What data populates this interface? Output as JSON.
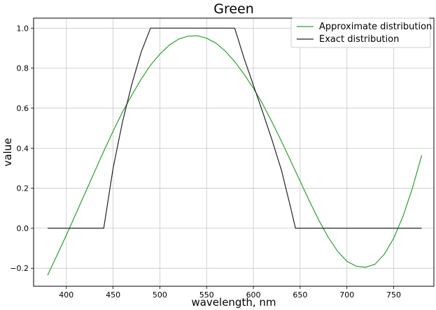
{
  "chart_data": {
    "type": "line",
    "title": "Green",
    "xlabel": "wavelength, nm",
    "ylabel": "value",
    "xlim": [
      365,
      793
    ],
    "ylim": [
      -0.29,
      1.05
    ],
    "xticks": [
      400,
      450,
      500,
      550,
      600,
      650,
      700,
      750
    ],
    "yticks": [
      -0.2,
      0.0,
      0.2,
      0.4,
      0.6,
      0.8,
      1.0
    ],
    "xtick_labels": [
      "400",
      "450",
      "500",
      "550",
      "600",
      "650",
      "700",
      "750"
    ],
    "ytick_labels": [
      "−0.2",
      "0.0",
      "0.2",
      "0.4",
      "0.6",
      "0.8",
      "1.0"
    ],
    "grid": true,
    "legend_position": "top-right",
    "series": [
      {
        "name": "Approximate distribution",
        "color": "#2ca02c",
        "x": [
          380,
          390,
          400,
          410,
          420,
          430,
          440,
          450,
          460,
          470,
          480,
          490,
          500,
          510,
          520,
          530,
          540,
          550,
          560,
          570,
          580,
          590,
          600,
          610,
          620,
          630,
          640,
          650,
          660,
          670,
          680,
          690,
          700,
          710,
          720,
          730,
          740,
          750,
          760,
          770,
          780
        ],
        "y": [
          -0.235,
          -0.135,
          -0.035,
          0.07,
          0.175,
          0.28,
          0.385,
          0.485,
          0.58,
          0.665,
          0.745,
          0.815,
          0.87,
          0.915,
          0.945,
          0.96,
          0.962,
          0.95,
          0.925,
          0.885,
          0.833,
          0.77,
          0.7,
          0.62,
          0.53,
          0.435,
          0.335,
          0.235,
          0.135,
          0.04,
          -0.045,
          -0.115,
          -0.165,
          -0.19,
          -0.195,
          -0.18,
          -0.13,
          -0.05,
          0.06,
          0.2,
          0.365
        ]
      },
      {
        "name": "Exact distribution",
        "color": "#222222",
        "x": [
          380,
          440,
          450,
          460,
          470,
          480,
          490,
          580,
          590,
          600,
          610,
          620,
          630,
          640,
          645,
          780
        ],
        "y": [
          0.0,
          0.0,
          0.3,
          0.53,
          0.72,
          0.88,
          1.0,
          1.0,
          0.85,
          0.715,
          0.58,
          0.44,
          0.29,
          0.1,
          0.0,
          0.0
        ]
      }
    ]
  }
}
